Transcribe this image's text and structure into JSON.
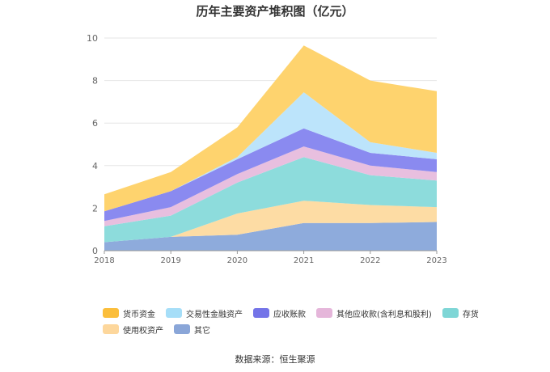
{
  "chart_data": {
    "type": "area",
    "stacked": true,
    "title": "历年主要资产堆积图（亿元）",
    "xlabel": "",
    "ylabel": "",
    "x": [
      "2018",
      "2019",
      "2020",
      "2021",
      "2022",
      "2023"
    ],
    "yticks": [
      0,
      2,
      4,
      6,
      8,
      10
    ],
    "ylim": [
      0,
      10
    ],
    "grid": true,
    "legend_position": "bottom",
    "series": [
      {
        "name": "其它",
        "color": "#8EABDC",
        "values": [
          0.4,
          0.65,
          0.75,
          1.3,
          1.3,
          1.35
        ]
      },
      {
        "name": "使用权资产",
        "color": "#FDDCA4",
        "values": [
          0.0,
          0.0,
          1.0,
          1.05,
          0.85,
          0.7
        ]
      },
      {
        "name": "存货",
        "color": "#8DDCDC",
        "values": [
          0.75,
          1.0,
          1.45,
          2.05,
          1.4,
          1.25
        ]
      },
      {
        "name": "其他应收款(含利息和股利)",
        "color": "#E8BFDF",
        "values": [
          0.25,
          0.4,
          0.4,
          0.5,
          0.45,
          0.4
        ]
      },
      {
        "name": "应收账款",
        "color": "#8A8AF0",
        "values": [
          0.45,
          0.75,
          0.7,
          0.85,
          0.6,
          0.6
        ]
      },
      {
        "name": "交易性金融资产",
        "color": "#BCE4FB",
        "values": [
          0.0,
          0.0,
          0.1,
          1.7,
          0.5,
          0.3
        ]
      },
      {
        "name": "货币资金",
        "color": "#FED36E",
        "values": [
          0.8,
          0.9,
          1.4,
          2.2,
          2.9,
          2.9
        ]
      }
    ]
  },
  "legend": {
    "row1": [
      {
        "label": "货币资金",
        "color": "#FBBE3B"
      },
      {
        "label": "交易性金融资产",
        "color": "#A6DEF8"
      },
      {
        "label": "应收账款",
        "color": "#7474E8"
      },
      {
        "label": "其他应收款(含利息和股利)",
        "color": "#E5B6DA"
      },
      {
        "label": "存货",
        "color": "#7ED6D6"
      }
    ],
    "row2": [
      {
        "label": "使用权资产",
        "color": "#FDD79C"
      },
      {
        "label": "其它",
        "color": "#8AA6D8"
      }
    ]
  },
  "source": "数据来源：恒生聚源"
}
